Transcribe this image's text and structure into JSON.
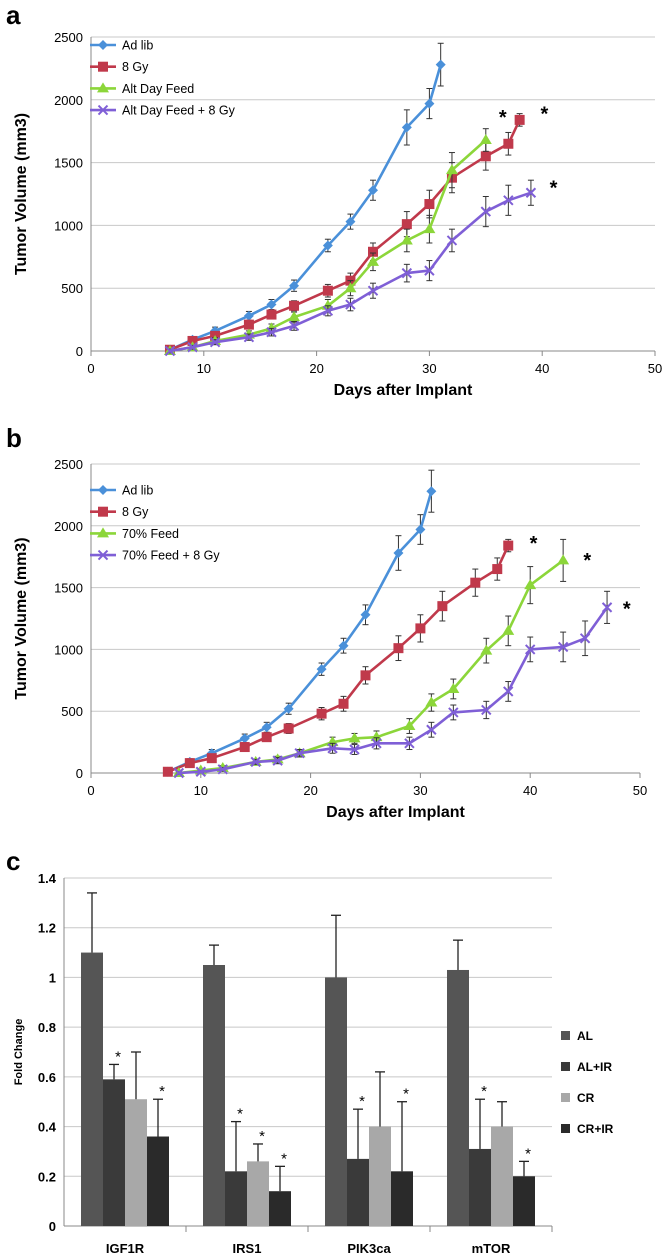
{
  "colors": {
    "ad_lib": "#4a90d9",
    "eight_gy": "#c0394b",
    "feed": "#8cd63a",
    "feed_8gy": "#7f5fd6",
    "AL": "#555555",
    "AL_IR": "#3a3a3a",
    "CR": "#a8a8a8",
    "CR_IR": "#2a2a2a"
  },
  "chart_data": [
    {
      "type": "line",
      "panel_label": "a",
      "xlabel": "Days after Implant",
      "ylabel": "Tumor Volume (mm3)",
      "xlim": [
        0,
        50
      ],
      "ylim": [
        0,
        2500
      ],
      "xticks": [
        0,
        10,
        20,
        30,
        40,
        50
      ],
      "yticks": [
        0,
        500,
        1000,
        1500,
        2000,
        2500
      ],
      "grid": "horizontal",
      "legend": "top-left",
      "series": [
        {
          "name": "Ad lib",
          "marker": "diamond",
          "x": [
            7,
            9,
            11,
            14,
            16,
            18,
            21,
            23,
            25,
            28,
            30,
            31
          ],
          "y": [
            10,
            90,
            160,
            280,
            370,
            520,
            840,
            1030,
            1280,
            1780,
            1970,
            2280
          ],
          "err": [
            20,
            25,
            30,
            35,
            40,
            45,
            50,
            60,
            80,
            140,
            120,
            170
          ]
        },
        {
          "name": "8 Gy",
          "marker": "square",
          "x": [
            7,
            9,
            11,
            14,
            16,
            18,
            21,
            23,
            25,
            28,
            30,
            32,
            35,
            37,
            38
          ],
          "y": [
            10,
            80,
            120,
            210,
            290,
            360,
            480,
            560,
            790,
            1010,
            1170,
            1380,
            1550,
            1650,
            1840
          ],
          "err": [
            20,
            20,
            25,
            30,
            35,
            40,
            50,
            60,
            70,
            100,
            110,
            120,
            110,
            90,
            50
          ]
        },
        {
          "name": "Alt Day Feed",
          "marker": "triangle",
          "x": [
            7,
            9,
            11,
            14,
            16,
            18,
            21,
            23,
            25,
            28,
            30,
            32,
            35
          ],
          "y": [
            0,
            30,
            80,
            130,
            180,
            270,
            360,
            500,
            710,
            880,
            970,
            1440,
            1680
          ],
          "err": [
            15,
            20,
            25,
            30,
            35,
            40,
            50,
            60,
            70,
            90,
            110,
            140,
            90
          ]
        },
        {
          "name": "Alt Day Feed + 8 Gy",
          "marker": "x",
          "x": [
            7,
            9,
            11,
            14,
            16,
            18,
            21,
            23,
            25,
            28,
            30,
            32,
            35,
            37,
            39
          ],
          "y": [
            0,
            30,
            70,
            110,
            150,
            200,
            320,
            370,
            480,
            620,
            640,
            880,
            1110,
            1200,
            1260
          ],
          "err": [
            15,
            15,
            20,
            25,
            30,
            35,
            40,
            50,
            60,
            70,
            80,
            90,
            120,
            120,
            100
          ]
        }
      ],
      "annotations": [
        {
          "text": "*",
          "x": 36.5,
          "y": 1870
        },
        {
          "text": "*",
          "x": 40.2,
          "y": 1900
        },
        {
          "text": "*",
          "x": 41,
          "y": 1310
        }
      ]
    },
    {
      "type": "line",
      "panel_label": "b",
      "xlabel": "Days after Implant",
      "ylabel": "Tumor Volume (mm3)",
      "xlim": [
        0,
        50
      ],
      "ylim": [
        0,
        2500
      ],
      "xticks": [
        0,
        10,
        20,
        30,
        40,
        50
      ],
      "yticks": [
        0,
        500,
        1000,
        1500,
        2000,
        2500
      ],
      "grid": "horizontal",
      "legend": "top-left",
      "series": [
        {
          "name": "Ad lib",
          "marker": "diamond",
          "x": [
            7,
            9,
            11,
            14,
            16,
            18,
            21,
            23,
            25,
            28,
            30,
            31
          ],
          "y": [
            10,
            90,
            160,
            280,
            370,
            520,
            840,
            1030,
            1280,
            1780,
            1970,
            2280
          ],
          "err": [
            20,
            25,
            30,
            35,
            40,
            45,
            50,
            60,
            80,
            140,
            120,
            170
          ]
        },
        {
          "name": "8 Gy",
          "marker": "square",
          "x": [
            7,
            9,
            11,
            14,
            16,
            18,
            21,
            23,
            25,
            28,
            30,
            32,
            35,
            37,
            38
          ],
          "y": [
            10,
            80,
            120,
            210,
            290,
            360,
            480,
            560,
            790,
            1010,
            1170,
            1350,
            1540,
            1650,
            1840
          ],
          "err": [
            20,
            20,
            25,
            30,
            35,
            40,
            50,
            60,
            70,
            100,
            110,
            120,
            110,
            90,
            50
          ]
        },
        {
          "name": "70% Feed",
          "marker": "triangle",
          "x": [
            8,
            10,
            12,
            15,
            17,
            19,
            22,
            24,
            26,
            29,
            31,
            33,
            36,
            38,
            40,
            43
          ],
          "y": [
            0,
            20,
            40,
            90,
            110,
            160,
            250,
            280,
            290,
            380,
            570,
            680,
            990,
            1150,
            1520,
            1720
          ],
          "err": [
            10,
            15,
            20,
            20,
            25,
            30,
            40,
            40,
            50,
            60,
            70,
            80,
            100,
            120,
            150,
            170
          ]
        },
        {
          "name": "70% Feed + 8 Gy",
          "marker": "x",
          "x": [
            8,
            10,
            12,
            15,
            17,
            19,
            22,
            24,
            26,
            29,
            31,
            33,
            36,
            38,
            40,
            43,
            45,
            47
          ],
          "y": [
            0,
            10,
            30,
            90,
            100,
            160,
            200,
            190,
            240,
            240,
            350,
            490,
            510,
            660,
            1000,
            1020,
            1090,
            1340
          ],
          "err": [
            10,
            10,
            15,
            20,
            25,
            30,
            40,
            40,
            45,
            50,
            60,
            60,
            70,
            80,
            100,
            120,
            140,
            130
          ]
        }
      ],
      "annotations": [
        {
          "text": "*",
          "x": 40.3,
          "y": 1870
        },
        {
          "text": "*",
          "x": 45.2,
          "y": 1730
        },
        {
          "text": "*",
          "x": 48.8,
          "y": 1340
        }
      ]
    },
    {
      "type": "bar",
      "panel_label": "c",
      "xlabel": "",
      "ylabel": "Fold Change",
      "ylim": [
        0,
        1.4
      ],
      "yticks": [
        0,
        0.2,
        0.4,
        0.6,
        0.8,
        1,
        1.2,
        1.4
      ],
      "grid": "horizontal",
      "legend": "right",
      "categories": [
        "IGF1R",
        "IRS1",
        "PIK3ca",
        "mTOR"
      ],
      "series": [
        {
          "name": "AL",
          "values": [
            1.1,
            1.05,
            1.0,
            1.03
          ],
          "err": [
            0.24,
            0.08,
            0.25,
            0.12
          ],
          "sig": [
            false,
            false,
            false,
            false
          ]
        },
        {
          "name": "AL+IR",
          "values": [
            0.59,
            0.22,
            0.27,
            0.31
          ],
          "err": [
            0.06,
            0.2,
            0.2,
            0.2
          ],
          "sig": [
            true,
            true,
            true,
            true
          ]
        },
        {
          "name": "CR",
          "values": [
            0.51,
            0.26,
            0.4,
            0.4
          ],
          "err": [
            0.19,
            0.07,
            0.22,
            0.1
          ],
          "sig": [
            false,
            true,
            false,
            false
          ]
        },
        {
          "name": "CR+IR",
          "values": [
            0.36,
            0.14,
            0.22,
            0.2
          ],
          "err": [
            0.15,
            0.1,
            0.28,
            0.06
          ],
          "sig": [
            true,
            true,
            true,
            true
          ]
        }
      ],
      "annotations": [
        {
          "text": "*"
        }
      ]
    }
  ]
}
